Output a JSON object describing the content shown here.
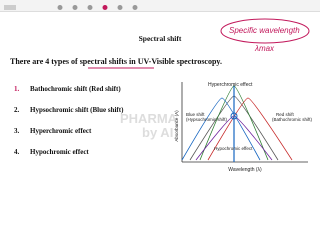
{
  "slide": {
    "title": "Spectral shift",
    "handwriting": [
      "Specific wavelength",
      "λmax"
    ],
    "intro": "There are 4 types of spectral shifts in UV-Visible spectroscopy.",
    "items": [
      {
        "number": "1.",
        "text": "Bathochromic shift (Red shift)"
      },
      {
        "number": "2.",
        "text": "Hypsochromic shift (Blue shift)"
      },
      {
        "number": "3.",
        "text": "Hyperchromic effect"
      },
      {
        "number": "4.",
        "text": "Hypochromic effect"
      }
    ],
    "watermark": [
      "PHARMA",
      "by AI"
    ],
    "diagram": {
      "hyperchromic": "Hyperchromic effect",
      "blue_shift": [
        "Blue shift",
        "(Hypsochromic shift)"
      ],
      "red_shift": [
        "Red shift",
        "(Bathochromic shift)"
      ],
      "hypochromic": "Hypochromic effect",
      "y_axis": "Absorbance (A)",
      "x_axis": "Wavelength (λ)"
    }
  }
}
